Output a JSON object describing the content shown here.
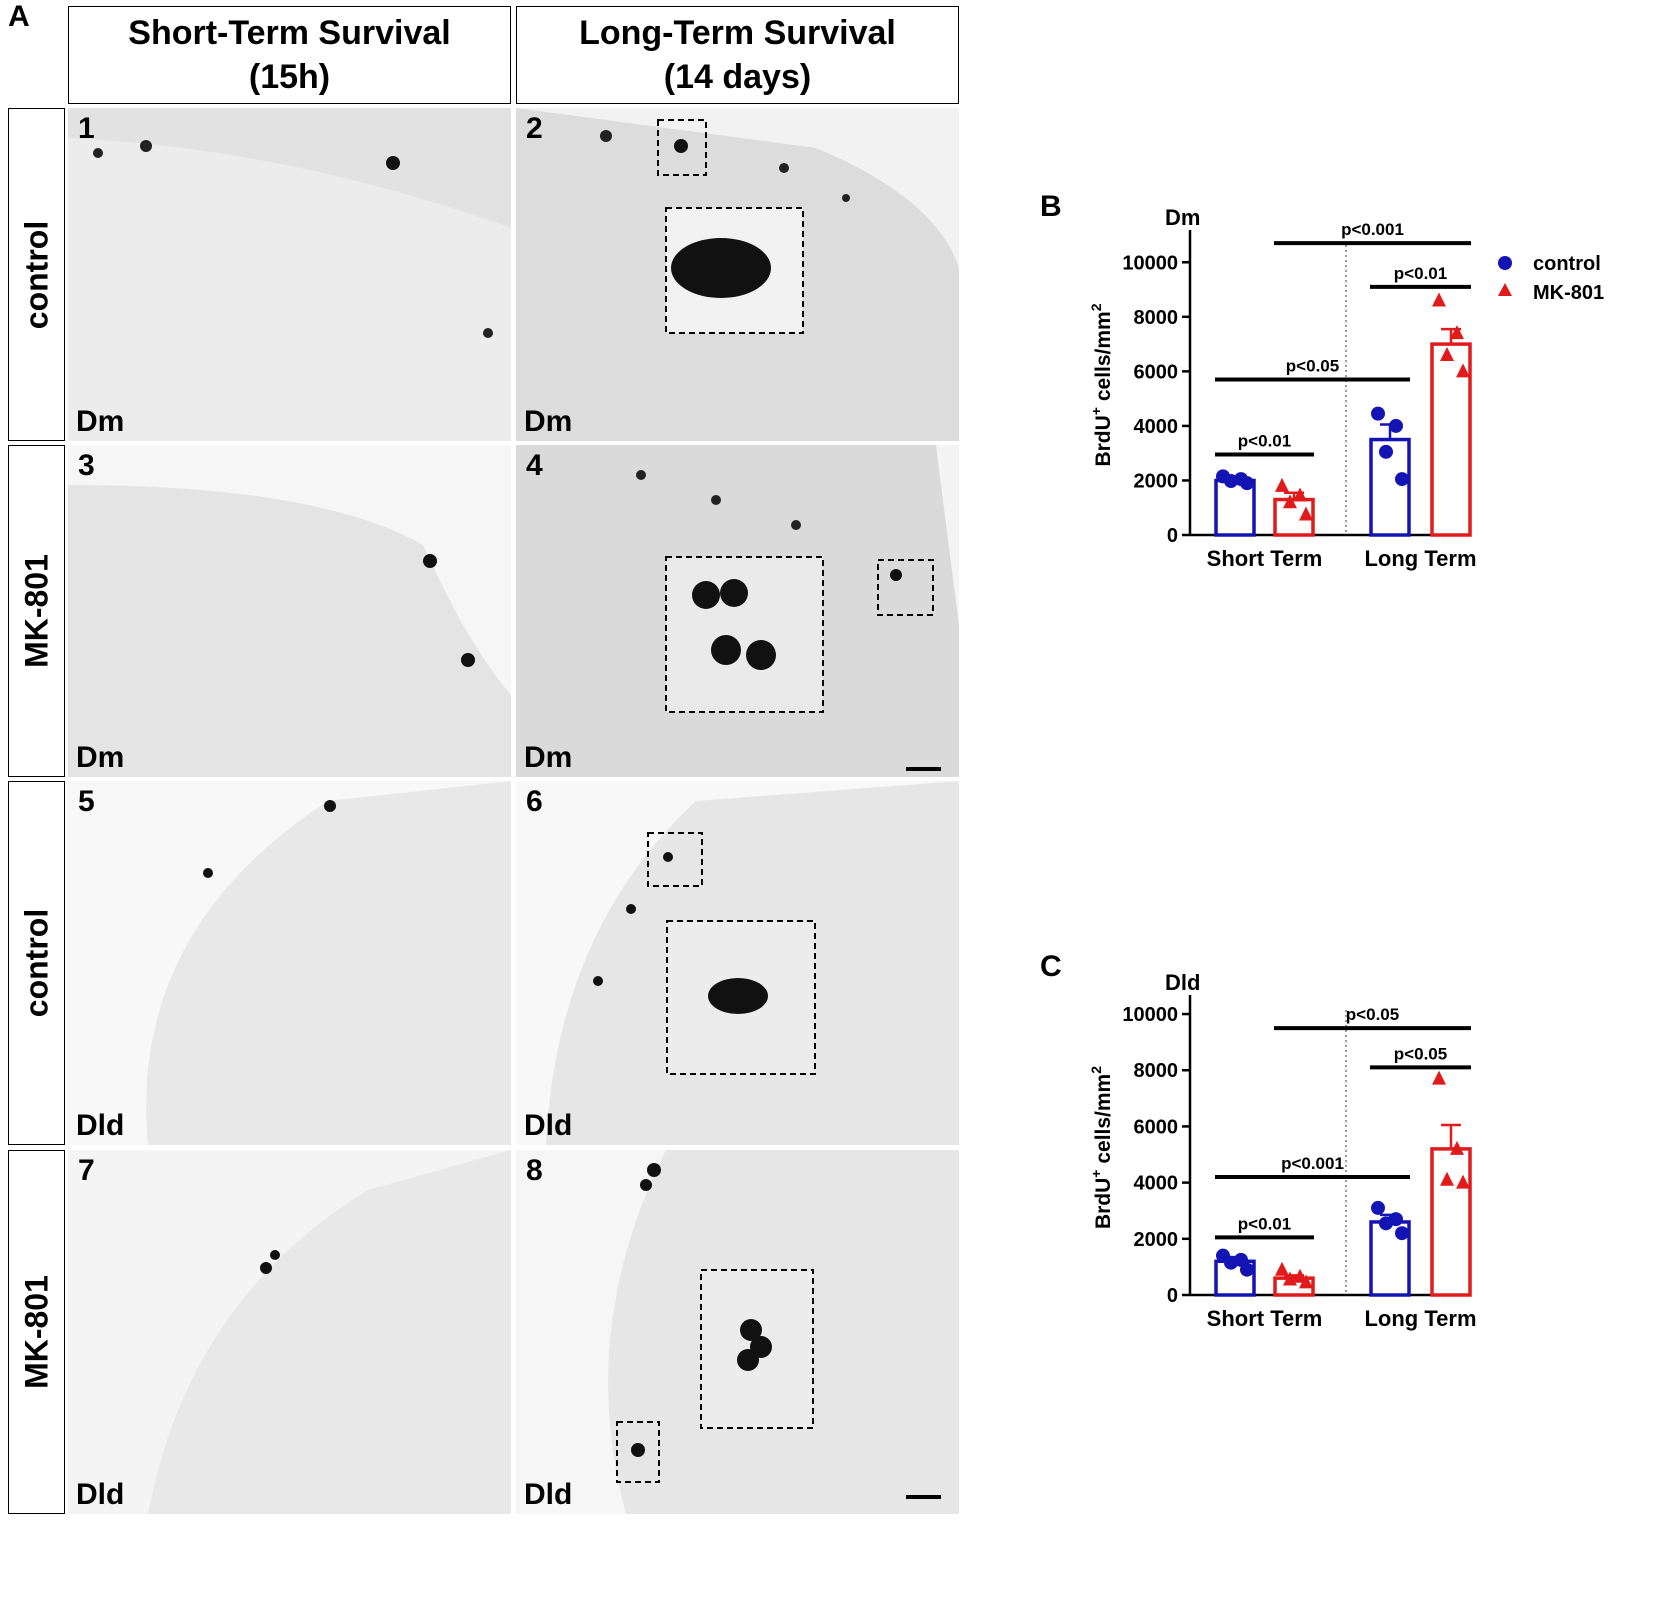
{
  "panel_a": {
    "letter": "A",
    "col_headers": [
      {
        "line1": "Short-Term Survival",
        "line2": "(15h)"
      },
      {
        "line1": "Long-Term Survival",
        "line2": "(14 days)"
      }
    ],
    "row_headers": [
      "control",
      "MK-801",
      "control",
      "MK-801"
    ],
    "images": [
      {
        "number": "1",
        "region": "Dm"
      },
      {
        "number": "2",
        "region": "Dm"
      },
      {
        "number": "3",
        "region": "Dm"
      },
      {
        "number": "4",
        "region": "Dm"
      },
      {
        "number": "5",
        "region": "Dld"
      },
      {
        "number": "6",
        "region": "Dld"
      },
      {
        "number": "7",
        "region": "Dld"
      },
      {
        "number": "8",
        "region": "Dld"
      }
    ]
  },
  "colors": {
    "control": "#1414b4",
    "mk801": "#e11b1b"
  },
  "legend": {
    "control": "control",
    "mk801": "MK-801"
  },
  "chart_data": [
    {
      "letter": "B",
      "type": "bar",
      "title": "Dm",
      "ylabel_base": "BrdU",
      "ylabel_sup": "+",
      "ylabel_mid": " cells/mm",
      "ylabel_sup2": "2",
      "ylim": [
        0,
        11000
      ],
      "yticks": [
        "0",
        "2000",
        "4000",
        "6000",
        "8000",
        "10000"
      ],
      "ytick_values": [
        0,
        2000,
        4000,
        6000,
        8000,
        10000
      ],
      "categories": [
        "Short Term",
        "Long Term"
      ],
      "series": [
        {
          "name": "control",
          "values": [
            2000,
            3500
          ],
          "sem": [
            100,
            550
          ],
          "points": [
            [
              2150,
              2050,
              1980,
              1900
            ],
            [
              4450,
              4000,
              3050,
              2050
            ]
          ]
        },
        {
          "name": "MK-801",
          "values": [
            1300,
            7000
          ],
          "sem": [
            250,
            550
          ],
          "points": [
            [
              1800,
              1450,
              1200,
              750
            ],
            [
              8600,
              7400,
              6600,
              6000
            ]
          ]
        }
      ],
      "comparisons": [
        {
          "label": "p<0.01",
          "from": "short-control",
          "to": "short-mk801",
          "y": 2950
        },
        {
          "label": "p<0.05",
          "from": "short-control",
          "to": "long-control",
          "y": 5700
        },
        {
          "label": "p<0.01",
          "from": "long-control",
          "to": "long-mk801",
          "y": 9100
        },
        {
          "label": "p<0.001",
          "from": "short-mk801",
          "to": "long-mk801",
          "y": 10700
        }
      ],
      "legend_position": "top-right"
    },
    {
      "letter": "C",
      "type": "bar",
      "title": "Dld",
      "ylabel_base": "BrdU",
      "ylabel_sup": "+",
      "ylabel_mid": " cells/mm",
      "ylabel_sup2": "2",
      "ylim": [
        0,
        10500
      ],
      "yticks": [
        "0",
        "2000",
        "4000",
        "6000",
        "8000",
        "10000"
      ],
      "ytick_values": [
        0,
        2000,
        4000,
        6000,
        8000,
        10000
      ],
      "categories": [
        "Short Term",
        "Long Term"
      ],
      "series": [
        {
          "name": "control",
          "values": [
            1200,
            2600
          ],
          "sem": [
            150,
            250
          ],
          "points": [
            [
              1400,
              1250,
              1150,
              900
            ],
            [
              3100,
              2700,
              2550,
              2200
            ]
          ]
        },
        {
          "name": "MK-801",
          "values": [
            600,
            5200
          ],
          "sem": [
            100,
            850
          ],
          "points": [
            [
              900,
              650,
              550,
              450
            ],
            [
              7700,
              5200,
              4100,
              4000
            ]
          ]
        }
      ],
      "comparisons": [
        {
          "label": "p<0.01",
          "from": "short-control",
          "to": "short-mk801",
          "y": 2050
        },
        {
          "label": "p<0.001",
          "from": "short-control",
          "to": "long-control",
          "y": 4200
        },
        {
          "label": "p<0.05",
          "from": "long-control",
          "to": "long-mk801",
          "y": 8100
        },
        {
          "label": "p<0.05",
          "from": "short-mk801",
          "to": "long-mk801",
          "y": 9500
        }
      ]
    }
  ]
}
